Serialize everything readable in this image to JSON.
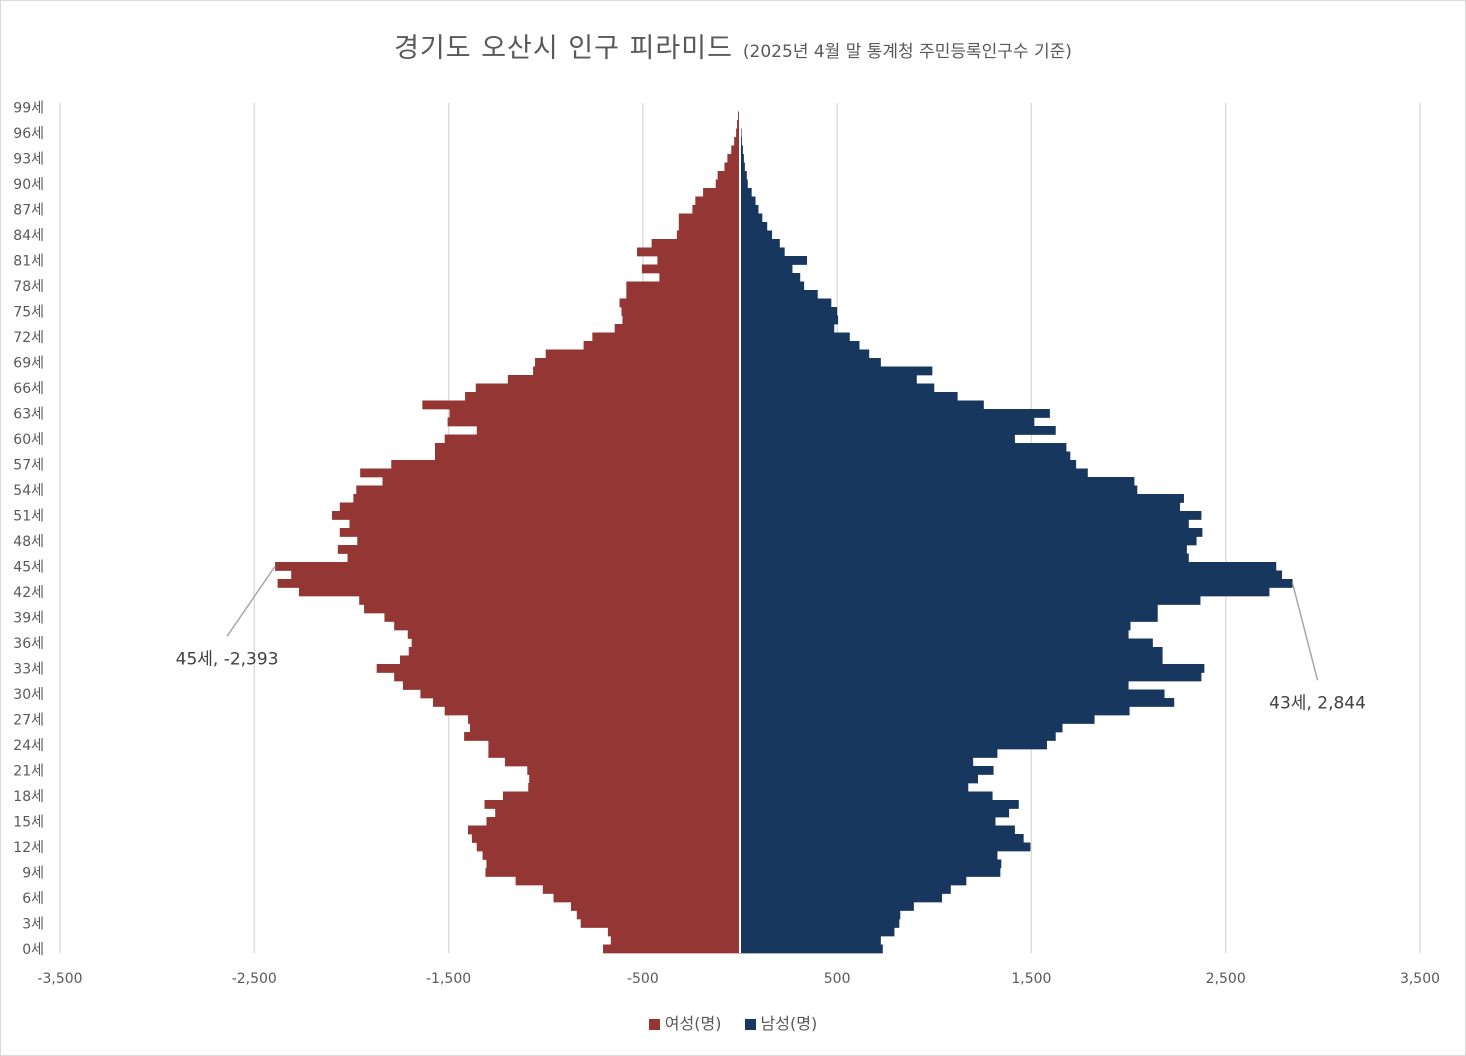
{
  "chart_data": {
    "type": "bar",
    "orientation": "horizontal",
    "title": "경기도 오산시 인구 피라미드",
    "subtitle": "(2025년 4월 말 통계청 주민등록인구수 기준)",
    "age_labels": [
      "0세",
      "1세",
      "2세",
      "3세",
      "4세",
      "5세",
      "6세",
      "7세",
      "8세",
      "9세",
      "10세",
      "11세",
      "12세",
      "13세",
      "14세",
      "15세",
      "16세",
      "17세",
      "18세",
      "19세",
      "20세",
      "21세",
      "22세",
      "23세",
      "24세",
      "25세",
      "26세",
      "27세",
      "28세",
      "29세",
      "30세",
      "31세",
      "32세",
      "33세",
      "34세",
      "35세",
      "36세",
      "37세",
      "38세",
      "39세",
      "40세",
      "41세",
      "42세",
      "43세",
      "44세",
      "45세",
      "46세",
      "47세",
      "48세",
      "49세",
      "50세",
      "51세",
      "52세",
      "53세",
      "54세",
      "55세",
      "56세",
      "57세",
      "58세",
      "59세",
      "60세",
      "61세",
      "62세",
      "63세",
      "64세",
      "65세",
      "66세",
      "67세",
      "68세",
      "69세",
      "70세",
      "71세",
      "72세",
      "73세",
      "74세",
      "75세",
      "76세",
      "77세",
      "78세",
      "79세",
      "80세",
      "81세",
      "82세",
      "83세",
      "84세",
      "85세",
      "86세",
      "87세",
      "88세",
      "89세",
      "90세",
      "91세",
      "92세",
      "93세",
      "94세",
      "95세",
      "96세",
      "97세",
      "98세",
      "99세"
    ],
    "y_tick_labels": [
      "0세",
      "3세",
      "6세",
      "9세",
      "12세",
      "15세",
      "18세",
      "21세",
      "24세",
      "27세",
      "30세",
      "33세",
      "36세",
      "39세",
      "42세",
      "45세",
      "48세",
      "51세",
      "54세",
      "57세",
      "60세",
      "63세",
      "66세",
      "69세",
      "72세",
      "75세",
      "78세",
      "81세",
      "84세",
      "87세",
      "90세",
      "93세",
      "96세",
      "99세"
    ],
    "x_tick_labels": [
      "-3,500",
      "-2,500",
      "-1,500",
      "-500",
      "500",
      "1,500",
      "2,500",
      "3,500"
    ],
    "xlim": [
      -3500,
      3500
    ],
    "grid": true,
    "legend_position": "bottom",
    "series": [
      {
        "name": "여성(명)",
        "color": "#943634",
        "values": [
          -705,
          -665,
          -680,
          -820,
          -840,
          -870,
          -960,
          -1015,
          -1155,
          -1310,
          -1305,
          -1325,
          -1355,
          -1380,
          -1400,
          -1305,
          -1260,
          -1315,
          -1220,
          -1090,
          -1085,
          -1095,
          -1210,
          -1295,
          -1295,
          -1420,
          -1390,
          -1400,
          -1520,
          -1580,
          -1645,
          -1735,
          -1780,
          -1870,
          -1750,
          -1705,
          -1690,
          -1710,
          -1780,
          -1830,
          -1935,
          -1960,
          -2270,
          -2380,
          -2310,
          -2393,
          -2020,
          -2070,
          -1970,
          -2060,
          -2010,
          -2100,
          -2060,
          -1990,
          -1975,
          -1840,
          -1955,
          -1795,
          -1570,
          -1570,
          -1520,
          -1355,
          -1505,
          -1495,
          -1635,
          -1415,
          -1360,
          -1195,
          -1065,
          -1055,
          -1000,
          -805,
          -760,
          -645,
          -605,
          -610,
          -620,
          -585,
          -585,
          -415,
          -505,
          -425,
          -530,
          -455,
          -325,
          -315,
          -315,
          -245,
          -230,
          -190,
          -125,
          -115,
          -80,
          -65,
          -45,
          -30,
          -20,
          -15,
          -10,
          -5
        ]
      },
      {
        "name": "남성(명)",
        "color": "#17375e",
        "values": [
          735,
          725,
          795,
          820,
          825,
          895,
          1040,
          1085,
          1165,
          1340,
          1345,
          1325,
          1495,
          1460,
          1415,
          1315,
          1385,
          1435,
          1300,
          1175,
          1225,
          1305,
          1200,
          1325,
          1580,
          1625,
          1660,
          1825,
          2005,
          2235,
          2185,
          2000,
          2375,
          2390,
          2175,
          2175,
          2125,
          2000,
          2010,
          2150,
          2150,
          2370,
          2725,
          2844,
          2790,
          2760,
          2310,
          2300,
          2350,
          2380,
          2310,
          2375,
          2265,
          2285,
          2045,
          2030,
          1790,
          1730,
          1700,
          1680,
          1415,
          1625,
          1515,
          1595,
          1255,
          1120,
          1000,
          910,
          990,
          725,
          665,
          615,
          565,
          485,
          505,
          500,
          470,
          400,
          330,
          310,
          270,
          345,
          230,
          205,
          165,
          140,
          115,
          95,
          80,
          60,
          40,
          35,
          25,
          20,
          15,
          10,
          8,
          5,
          3,
          2
        ]
      }
    ],
    "annotations": [
      {
        "label": "45세, -2,393",
        "age": "45세",
        "value": -2393
      },
      {
        "label": "43세, 2,844",
        "age": "43세",
        "value": 2844
      }
    ]
  }
}
